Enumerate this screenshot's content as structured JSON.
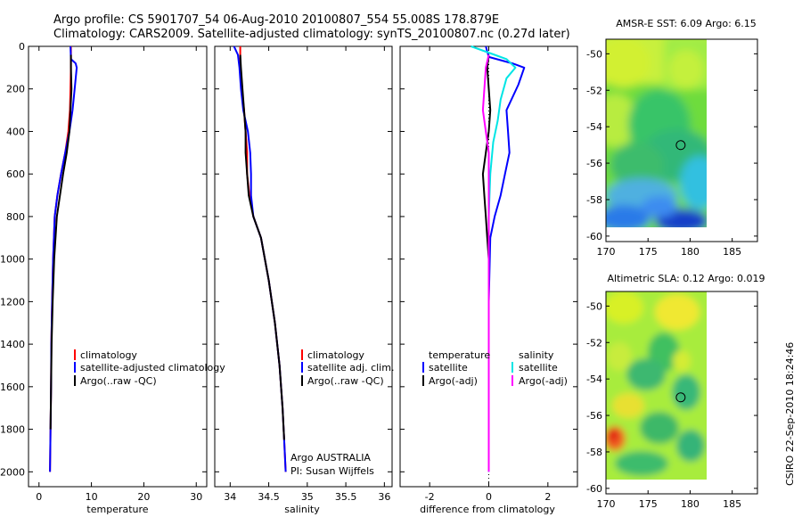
{
  "header": {
    "line1": "Argo profile: CS 5901707_54 06-Aug-2010 20100807_554 55.008S 178.879E",
    "line2": "Climatology: CARS2009. Satellite-adjusted climatology: synTS_20100807.nc (0.27d later)"
  },
  "footer": {
    "credit": "CSIRO 22-Sep-2010 18:24:46",
    "argo_line1": "Argo AUSTRALIA",
    "argo_line2": "PI: Susan Wijffels"
  },
  "colors": {
    "climatology": "#ff0000",
    "satellite": "#0000ff",
    "argo": "#000000",
    "sal_satellite": "#00e5e5",
    "sal_argo": "#ff00ff",
    "sal_clim": "#00ffff"
  },
  "chart_data": [
    {
      "type": "line",
      "id": "temperature",
      "xlabel": "temperature",
      "ylabel": "",
      "xlim": [
        -2,
        32
      ],
      "ylim": [
        2070,
        0
      ],
      "xticks": [
        "0",
        "10",
        "20",
        "30"
      ],
      "xtick_values": [
        0,
        10,
        20,
        30
      ],
      "yticks": [
        "0",
        "200",
        "400",
        "600",
        "800",
        "1000",
        "1200",
        "1400",
        "1600",
        "1800",
        "2000"
      ],
      "ytick_values": [
        0,
        200,
        400,
        600,
        800,
        1000,
        1200,
        1400,
        1600,
        1800,
        2000
      ],
      "legend": [
        "climatology",
        "satellite-adjusted climatology",
        "Argo(..raw -QC)"
      ],
      "series": [
        {
          "name": "climatology",
          "color": "#ff0000",
          "x": [
            6.1,
            6.1,
            6.0,
            5.9,
            5.6,
            5.0,
            4.2,
            3.5,
            3.0,
            2.7,
            2.5,
            2.35,
            2.3,
            2.2,
            2.1
          ],
          "y": [
            0,
            100,
            200,
            300,
            400,
            500,
            600,
            700,
            800,
            1000,
            1200,
            1400,
            1600,
            1800,
            2000
          ]
        },
        {
          "name": "satellite-adjusted climatology",
          "color": "#0000ff",
          "x": [
            6.0,
            6.1,
            7.0,
            7.2,
            6.8,
            6.4,
            5.8,
            5.0,
            4.2,
            3.5,
            3.0,
            2.7,
            2.5,
            2.35,
            2.3,
            2.2,
            2.1
          ],
          "y": [
            0,
            60,
            80,
            100,
            200,
            300,
            400,
            500,
            600,
            700,
            800,
            1000,
            1200,
            1400,
            1600,
            1800,
            2000
          ]
        },
        {
          "name": "Argo(..raw -QC)",
          "color": "#000000",
          "x": [
            6.1,
            6.1,
            6.2,
            6.0,
            5.8,
            5.3,
            4.6,
            4.0,
            3.4,
            2.9,
            2.6,
            2.4,
            2.3,
            2.2
          ],
          "y": [
            40,
            100,
            200,
            300,
            400,
            500,
            600,
            700,
            800,
            1000,
            1200,
            1400,
            1600,
            1800
          ]
        }
      ]
    },
    {
      "type": "line",
      "id": "salinity",
      "xlabel": "salinity",
      "ylabel": "",
      "xlim": [
        33.8,
        36.1
      ],
      "ylim": [
        2070,
        0
      ],
      "xticks": [
        "34",
        "34.5",
        "35",
        "35.5",
        "36"
      ],
      "xtick_values": [
        34,
        34.5,
        35,
        35.5,
        36
      ],
      "legend": [
        "climatology",
        "satellite adj. clim.",
        "Argo(..raw -QC)"
      ],
      "series": [
        {
          "name": "climatology",
          "color": "#ff0000",
          "x": [
            34.13,
            34.13,
            34.15,
            34.18,
            34.2,
            34.22,
            34.22,
            34.25,
            34.3,
            34.4,
            34.5,
            34.58,
            34.64,
            34.68,
            34.7,
            34.72
          ],
          "y": [
            0,
            100,
            200,
            300,
            400,
            500,
            600,
            700,
            800,
            900,
            1100,
            1300,
            1500,
            1700,
            1850,
            2000
          ]
        },
        {
          "name": "satellite adj. clim.",
          "color": "#0000ff",
          "x": [
            34.05,
            34.1,
            34.12,
            34.14,
            34.17,
            34.23,
            34.26,
            34.27,
            34.27,
            34.3,
            34.4,
            34.5,
            34.58,
            34.64,
            34.68,
            34.7,
            34.72
          ],
          "y": [
            0,
            40,
            100,
            200,
            300,
            400,
            500,
            600,
            700,
            800,
            900,
            1100,
            1300,
            1500,
            1700,
            1850,
            2000
          ]
        },
        {
          "name": "Argo(..raw -QC)",
          "color": "#000000",
          "x": [
            34.13,
            34.14,
            34.16,
            34.18,
            34.2,
            34.2,
            34.22,
            34.24,
            34.3,
            34.4,
            34.5,
            34.58,
            34.64,
            34.68,
            34.7
          ],
          "y": [
            40,
            100,
            200,
            300,
            400,
            500,
            600,
            700,
            800,
            900,
            1100,
            1300,
            1500,
            1700,
            1850
          ]
        }
      ]
    },
    {
      "type": "line",
      "id": "difference",
      "xlabel": "difference from climatology",
      "ylabel": "",
      "xlim": [
        -3,
        3
      ],
      "ylim": [
        2070,
        0
      ],
      "xticks": [
        "-2",
        "0",
        "2"
      ],
      "xtick_values": [
        -2,
        0,
        2
      ],
      "legend_left_title": "temperature",
      "legend_right_title": "salinity",
      "legend": [
        "satellite",
        "Argo(-adj)",
        "satellite",
        "Argo(-adj)"
      ],
      "series": [
        {
          "name": "temperature satellite",
          "color": "#0000ff",
          "x": [
            -0.1,
            0.0,
            0.8,
            1.2,
            1.0,
            0.6,
            0.65,
            0.7,
            0.55,
            0.4,
            0.2,
            0.05,
            0.0,
            0.0,
            0.0
          ],
          "y": [
            0,
            50,
            80,
            100,
            180,
            300,
            400,
            500,
            600,
            700,
            800,
            900,
            1200,
            1600,
            2000
          ]
        },
        {
          "name": "salinity satellite",
          "color": "#00e5e5",
          "x": [
            -0.6,
            0.2,
            0.6,
            0.9,
            0.6,
            0.4,
            0.3,
            0.15,
            0.05,
            0.0,
            0.0
          ],
          "y": [
            0,
            40,
            60,
            100,
            150,
            250,
            350,
            450,
            600,
            800,
            2000
          ]
        },
        {
          "name": "temperature Argo(-adj)",
          "color": "#000000",
          "x": [
            0.0,
            -0.05,
            0.0,
            0.05,
            0.0,
            -0.1,
            -0.2,
            -0.15,
            -0.1,
            -0.05,
            0.0
          ],
          "y": [
            40,
            100,
            200,
            300,
            400,
            500,
            600,
            700,
            800,
            900,
            1000
          ]
        },
        {
          "name": "salinity Argo(-adj)",
          "color": "#ff00ff",
          "x": [
            0.0,
            -0.1,
            -0.2,
            -0.1,
            0.0,
            0.0,
            0.0,
            0.0
          ],
          "y": [
            40,
            100,
            300,
            400,
            500,
            800,
            1200,
            2000
          ]
        }
      ]
    },
    {
      "type": "heatmap",
      "id": "sst_map",
      "title": "AMSR-E SST: 6.09 Argo: 6.15",
      "xlim": [
        170,
        188
      ],
      "ylim": [
        -60.3,
        -49.2
      ],
      "xticks": [
        "170",
        "175",
        "180",
        "185"
      ],
      "xtick_values": [
        170,
        175,
        180,
        185
      ],
      "yticks": [
        "-50",
        "-52",
        "-54",
        "-56",
        "-58",
        "-60"
      ],
      "ytick_values": [
        -50,
        -52,
        -54,
        -56,
        -58,
        -60
      ],
      "data_extent": {
        "lon": [
          170,
          180
        ],
        "lat": [
          -60,
          -49.2
        ]
      },
      "argo_marker": {
        "lon": 178.879,
        "lat": -55.008
      }
    },
    {
      "type": "heatmap",
      "id": "sla_map",
      "title": "Altimetric SLA: 0.12 Argo: 0.019",
      "xlim": [
        170,
        188
      ],
      "ylim": [
        -60.3,
        -49.2
      ],
      "xticks": [
        "170",
        "175",
        "180",
        "185"
      ],
      "xtick_values": [
        170,
        175,
        180,
        185
      ],
      "yticks": [
        "-50",
        "-52",
        "-54",
        "-56",
        "-58",
        "-60"
      ],
      "ytick_values": [
        -50,
        -52,
        -54,
        -56,
        -58,
        -60
      ],
      "data_extent": {
        "lon": [
          170,
          180
        ],
        "lat": [
          -60,
          -49.2
        ]
      },
      "argo_marker": {
        "lon": 178.879,
        "lat": -55.008
      }
    }
  ]
}
